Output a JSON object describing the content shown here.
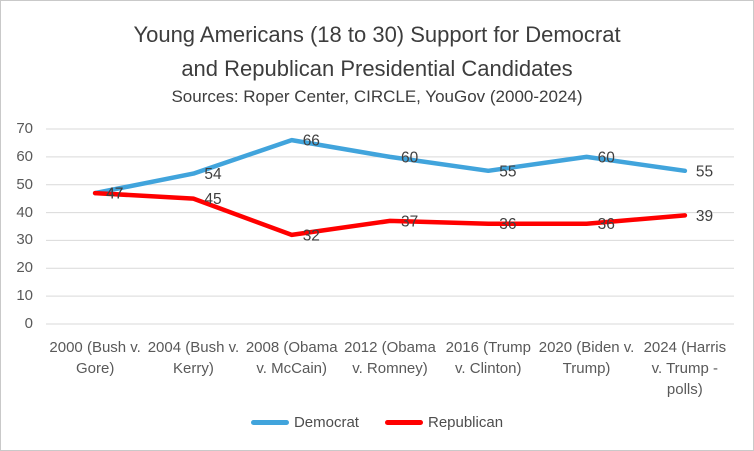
{
  "header": {
    "title_line1": "Young Americans (18 to 30) Support for Democrat",
    "title_line2": "and Republican Presidential Candidates",
    "subtitle": "Sources: Roper Center, CIRCLE, YouGov (2000-2024)"
  },
  "chart_data": {
    "type": "line",
    "title": "Young Americans (18 to 30) Support for Democrat and Republican Presidential Candidates",
    "subtitle": "Sources: Roper Center, CIRCLE, YouGov (2000-2024)",
    "categories": [
      "2000 (Bush v. Gore)",
      "2004 (Bush v. Kerry)",
      "2008 (Obama v. McCain)",
      "2012 (Obama v. Romney)",
      "2016 (Trump v. Clinton)",
      "2020 (Biden v. Trump)",
      "2024 (Harris v. Trump - polls)"
    ],
    "series": [
      {
        "name": "Democrat",
        "color": "#41A4DC",
        "values": [
          47,
          54,
          66,
          60,
          55,
          60,
          55
        ]
      },
      {
        "name": "Republican",
        "color": "#FF0000",
        "values": [
          47,
          45,
          32,
          37,
          36,
          36,
          39
        ]
      }
    ],
    "y_ticks": [
      0,
      10,
      20,
      30,
      40,
      50,
      60,
      70
    ],
    "ylim": [
      0,
      70
    ],
    "grid": true,
    "grid_color": "#d9d9d9",
    "data_label_color": "#404040",
    "data_labels": true,
    "legend_position": "bottom"
  }
}
